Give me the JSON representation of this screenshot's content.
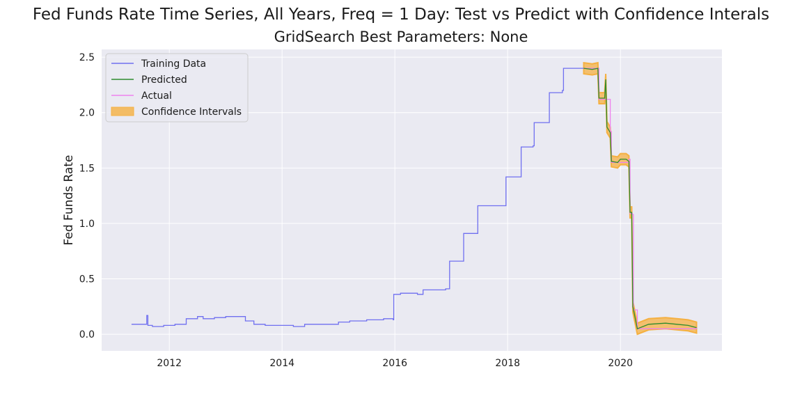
{
  "title": "Fed Funds Rate Time Series, All Years, Freq = 1 Day: Test vs Predict with Confidence Interals",
  "subtitle": "GridSearch Best Parameters: None",
  "chart_data": {
    "type": "line",
    "ylabel": "Fed Funds Rate",
    "xlabel": "",
    "xlim": [
      2010.8,
      2021.8
    ],
    "ylim": [
      -0.15,
      2.57
    ],
    "x_ticks": [
      "2012",
      "2014",
      "2016",
      "2018",
      "2020"
    ],
    "y_ticks": [
      "0.0",
      "0.5",
      "1.0",
      "1.5",
      "2.0",
      "2.5"
    ],
    "grid": true,
    "legend_position": "top-left",
    "legend": [
      "Training Data",
      "Predicted",
      "Actual",
      "Confidence Intervals"
    ],
    "colors": {
      "training": "#6f6ff0",
      "predicted": "#2e8b2e",
      "actual": "#ee82ee",
      "ci": "#f5b041",
      "background": "#eaeaf2"
    },
    "training": {
      "x": [
        2011.33,
        2011.5,
        2011.6,
        2011.62,
        2011.7,
        2011.9,
        2012.0,
        2012.1,
        2012.3,
        2012.5,
        2012.6,
        2012.8,
        2013.0,
        2013.2,
        2013.35,
        2013.5,
        2013.7,
        2014.0,
        2014.2,
        2014.4,
        2014.6,
        2014.8,
        2015.0,
        2015.2,
        2015.5,
        2015.8,
        2015.97,
        2015.98,
        2016.1,
        2016.4,
        2016.5,
        2016.9,
        2016.97,
        2017.2,
        2017.22,
        2017.45,
        2017.47,
        2017.95,
        2017.97,
        2018.22,
        2018.24,
        2018.45,
        2018.47,
        2018.72,
        2018.74,
        2018.97,
        2018.99,
        2019.35
      ],
      "y": [
        0.09,
        0.09,
        0.17,
        0.08,
        0.07,
        0.08,
        0.08,
        0.09,
        0.14,
        0.16,
        0.14,
        0.15,
        0.16,
        0.16,
        0.12,
        0.09,
        0.08,
        0.08,
        0.07,
        0.09,
        0.09,
        0.09,
        0.11,
        0.12,
        0.13,
        0.14,
        0.13,
        0.36,
        0.37,
        0.36,
        0.4,
        0.41,
        0.66,
        0.66,
        0.91,
        0.91,
        1.16,
        1.16,
        1.42,
        1.42,
        1.69,
        1.7,
        1.91,
        1.91,
        2.18,
        2.2,
        2.4,
        2.4
      ]
    },
    "predicted": {
      "x": [
        2019.35,
        2019.5,
        2019.6,
        2019.62,
        2019.72,
        2019.74,
        2019.76,
        2019.82,
        2019.84,
        2019.95,
        2020.0,
        2020.1,
        2020.15,
        2020.17,
        2020.2,
        2020.22,
        2020.3,
        2020.5,
        2020.8,
        2021.0,
        2021.2,
        2021.35
      ],
      "y": [
        2.4,
        2.39,
        2.4,
        2.13,
        2.13,
        2.3,
        1.87,
        1.82,
        1.56,
        1.55,
        1.58,
        1.58,
        1.56,
        1.1,
        1.1,
        0.25,
        0.05,
        0.09,
        0.1,
        0.09,
        0.08,
        0.06
      ]
    },
    "actual": {
      "x": [
        2019.35,
        2019.6,
        2019.62,
        2019.82,
        2019.84,
        2020.15,
        2020.17,
        2020.21,
        2020.23,
        2020.3,
        2021.35
      ],
      "y": [
        2.4,
        2.4,
        2.12,
        1.83,
        1.55,
        1.58,
        1.09,
        1.08,
        0.22,
        0.05,
        0.06
      ]
    },
    "ci_halfwidth": 0.05
  }
}
